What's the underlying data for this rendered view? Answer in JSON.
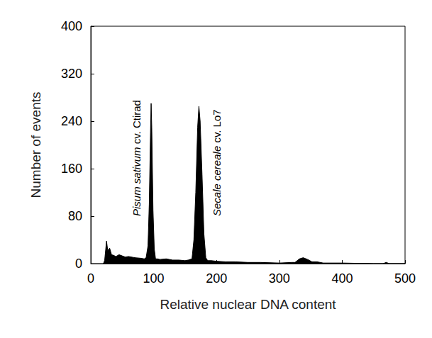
{
  "chart_data": {
    "type": "area",
    "xlabel": "Relative nuclear DNA content",
    "ylabel": "Number of events",
    "x": [
      20,
      22,
      25,
      27,
      30,
      33,
      36,
      40,
      45,
      50,
      55,
      60,
      70,
      80,
      85,
      88,
      91,
      93,
      95,
      96,
      97,
      99,
      101,
      103,
      106,
      110,
      120,
      130,
      140,
      150,
      155,
      161,
      164,
      167,
      170,
      172,
      174,
      177,
      180,
      183,
      186,
      192,
      200,
      215,
      230,
      250,
      270,
      300,
      320,
      325,
      332,
      338,
      345,
      352,
      360,
      370,
      400,
      450,
      465,
      470,
      475,
      500
    ],
    "values": [
      0,
      5,
      38,
      22,
      26,
      15,
      14,
      12,
      15,
      13,
      11,
      12,
      10,
      9,
      8,
      10,
      30,
      100,
      220,
      270,
      230,
      90,
      25,
      8,
      8,
      7,
      8,
      6,
      6,
      5,
      6,
      8,
      40,
      120,
      230,
      265,
      240,
      150,
      50,
      10,
      5,
      5,
      4,
      3,
      3,
      2,
      2,
      1,
      2,
      2,
      8,
      10,
      7,
      3,
      3,
      1,
      1,
      0,
      0,
      2,
      0,
      0
    ],
    "color": "#000000",
    "xlim": [
      0,
      500
    ],
    "xticks": [
      0,
      100,
      200,
      300,
      400,
      500
    ],
    "ylim": [
      0,
      400
    ],
    "yticks": [
      0,
      80,
      160,
      240,
      320,
      400
    ],
    "grid": false,
    "annotations": [
      {
        "text": "Pisum sativum cv. Ctirad",
        "x": 73,
        "y": 80
      },
      {
        "text": "Secale cereale cv. Lo7",
        "x": 200,
        "y": 80
      }
    ]
  }
}
